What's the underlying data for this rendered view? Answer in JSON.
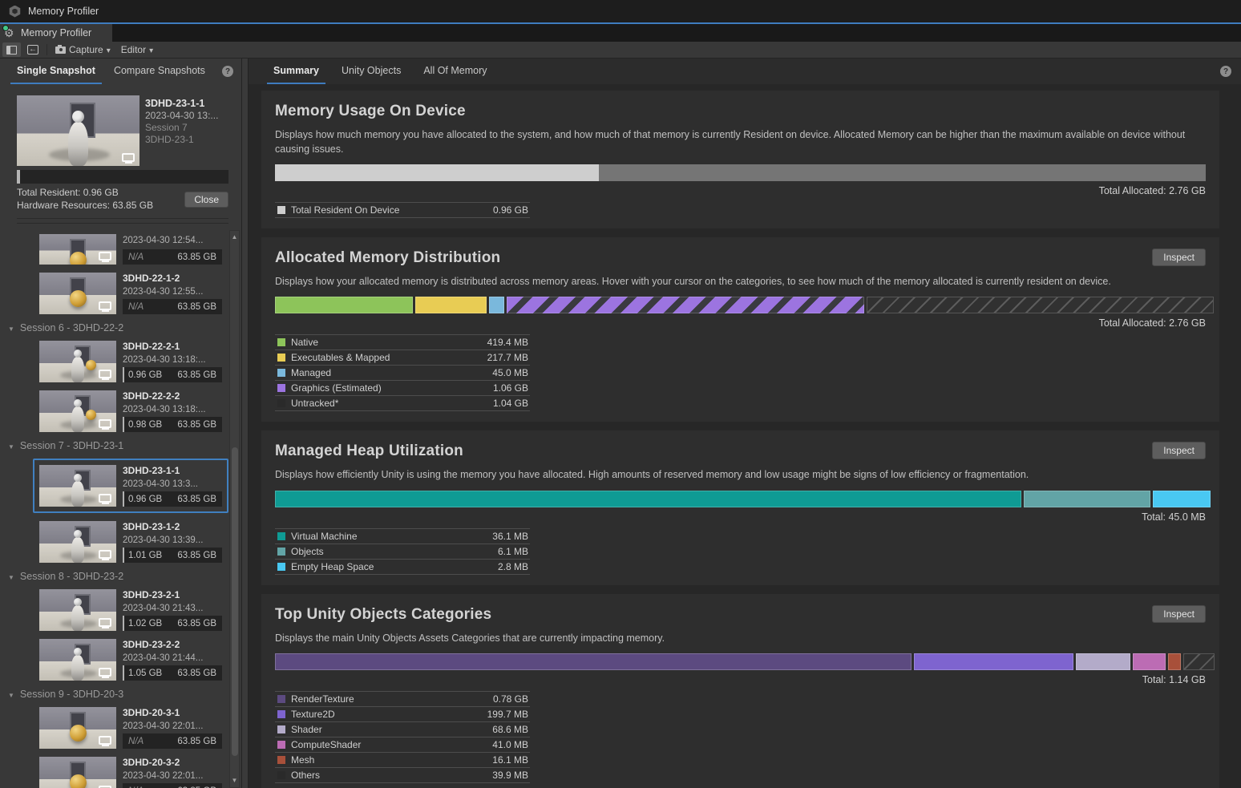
{
  "window": {
    "title": "Memory Profiler"
  },
  "dock_tab": {
    "label": "Memory Profiler"
  },
  "toolbar": {
    "capture_label": "Capture",
    "editor_label": "Editor"
  },
  "sidebar": {
    "tabs": [
      {
        "label": "Single Snapshot",
        "active": true
      },
      {
        "label": "Compare Snapshots",
        "active": false
      }
    ],
    "selected_card": {
      "name": "3DHD-23-1-1",
      "date": "2023-04-30 13:...",
      "session": "Session 7",
      "product": "3DHD-23-1",
      "bar_pct": 1.5,
      "total_resident": "Total Resident: 0.96 GB",
      "hardware_resources": "Hardware Resources: 63.85 GB",
      "close_label": "Close"
    },
    "list": [
      {
        "type": "item",
        "name": "",
        "date": "2023-04-30 12:54...",
        "resident": "N/A",
        "total": "63.85 GB",
        "thumb": "sphere",
        "clipped": true
      },
      {
        "type": "item",
        "name": "3DHD-22-1-2",
        "date": "2023-04-30 12:55...",
        "resident": "N/A",
        "total": "63.85 GB",
        "thumb": "sphere"
      },
      {
        "type": "session",
        "label": "Session 6 - 3DHD-22-2"
      },
      {
        "type": "item",
        "name": "3DHD-22-2-1",
        "date": "2023-04-30 13:18:...",
        "resident": "0.96 GB",
        "total": "63.85 GB",
        "thumb": "robot-sphere"
      },
      {
        "type": "item",
        "name": "3DHD-22-2-2",
        "date": "2023-04-30 13:18:...",
        "resident": "0.98 GB",
        "total": "63.85 GB",
        "thumb": "robot-sphere"
      },
      {
        "type": "session",
        "label": "Session 7 - 3DHD-23-1"
      },
      {
        "type": "item",
        "name": "3DHD-23-1-1",
        "date": "2023-04-30 13:3...",
        "resident": "0.96 GB",
        "total": "63.85 GB",
        "thumb": "robot",
        "selected": true
      },
      {
        "type": "item",
        "name": "3DHD-23-1-2",
        "date": "2023-04-30 13:39...",
        "resident": "1.01 GB",
        "total": "63.85 GB",
        "thumb": "robot"
      },
      {
        "type": "session",
        "label": "Session 8 - 3DHD-23-2"
      },
      {
        "type": "item",
        "name": "3DHD-23-2-1",
        "date": "2023-04-30 21:43...",
        "resident": "1.02 GB",
        "total": "63.85 GB",
        "thumb": "robot"
      },
      {
        "type": "item",
        "name": "3DHD-23-2-2",
        "date": "2023-04-30 21:44...",
        "resident": "1.05 GB",
        "total": "63.85 GB",
        "thumb": "robot"
      },
      {
        "type": "session",
        "label": "Session 9 - 3DHD-20-3"
      },
      {
        "type": "item",
        "name": "3DHD-20-3-1",
        "date": "2023-04-30 22:01...",
        "resident": "N/A",
        "total": "63.85 GB",
        "thumb": "sphere"
      },
      {
        "type": "item",
        "name": "3DHD-20-3-2",
        "date": "2023-04-30 22:01...",
        "resident": "N/A",
        "total": "63.85 GB",
        "thumb": "sphere"
      }
    ]
  },
  "main": {
    "tabs": [
      {
        "label": "Summary",
        "active": true
      },
      {
        "label": "Unity Objects",
        "active": false
      },
      {
        "label": "All Of Memory",
        "active": false
      }
    ],
    "inspect_label": "Inspect",
    "sections": [
      {
        "id": "memory-usage-on-device",
        "title": "Memory Usage On Device",
        "description": "Displays how much memory you have allocated to the system, and how much of that memory is currently Resident on device. Allocated Memory can be higher than the maximum available on device without causing issues.",
        "inspect": false,
        "bar_gap": 0,
        "bar": [
          {
            "name": "total-resident-on-device",
            "pct": 34.8,
            "color": "#cecece",
            "style": "plain"
          },
          {
            "name": "allocated-remainder",
            "pct": 65.2,
            "color": "#757575",
            "style": "plain"
          }
        ],
        "total_label": "Total Allocated: 2.76 GB",
        "legend": [
          {
            "name": "total-resident-on-device",
            "label": "Total Resident On Device",
            "value": "0.96 GB",
            "color": "#cecece"
          }
        ]
      },
      {
        "id": "allocated-memory-distribution",
        "title": "Allocated Memory Distribution",
        "description": "Displays how your allocated memory is distributed across memory areas. Hover with your cursor on the categories, to see how much of the memory allocated is currently resident on device.",
        "inspect": true,
        "bar_gap": 3,
        "bar": [
          {
            "name": "native",
            "pct": 14.8,
            "color": "#8dc45a",
            "style": "solid"
          },
          {
            "name": "executables-and-mapped",
            "pct": 7.7,
            "color": "#e8cc54",
            "style": "solid"
          },
          {
            "name": "managed",
            "pct": 1.6,
            "color": "#7ab8dc",
            "style": "solid"
          },
          {
            "name": "graphics-estimated",
            "pct": 38.4,
            "color": "#9c74e0",
            "style": "stripes"
          },
          {
            "name": "untracked",
            "pct": 37.3,
            "color": "#555555",
            "style": "hatch"
          }
        ],
        "total_label": "Total Allocated: 2.76 GB",
        "legend": [
          {
            "name": "native",
            "label": "Native",
            "value": "419.4 MB",
            "color": "#8dc45a"
          },
          {
            "name": "executables-and-mapped",
            "label": "Executables & Mapped",
            "value": "217.7 MB",
            "color": "#e8cc54"
          },
          {
            "name": "managed",
            "label": "Managed",
            "value": "45.0 MB",
            "color": "#7ab8dc"
          },
          {
            "name": "graphics-estimated",
            "label": "Graphics (Estimated)",
            "value": "1.06 GB",
            "color": "#9c74e0"
          },
          {
            "name": "untracked",
            "label": "Untracked*",
            "value": "1.04 GB",
            "color": "none"
          }
        ]
      },
      {
        "id": "managed-heap-utilization",
        "title": "Managed Heap Utilization",
        "description": "Displays how efficiently Unity is using the memory you have allocated. High amounts of reserved memory and low usage might be signs of low efficiency or fragmentation.",
        "inspect": true,
        "bar_gap": 3,
        "bar": [
          {
            "name": "virtual-machine",
            "pct": 80.2,
            "color": "#0f9b94",
            "style": "solid"
          },
          {
            "name": "objects",
            "pct": 13.6,
            "color": "#62a4a6",
            "style": "solid"
          },
          {
            "name": "empty-heap-space",
            "pct": 6.2,
            "color": "#49c8f2",
            "style": "solid"
          }
        ],
        "total_label": "Total: 45.0 MB",
        "legend": [
          {
            "name": "virtual-machine",
            "label": "Virtual Machine",
            "value": "36.1 MB",
            "color": "#0f9b94"
          },
          {
            "name": "objects",
            "label": "Objects",
            "value": "6.1 MB",
            "color": "#62a4a6"
          },
          {
            "name": "empty-heap-space",
            "label": "Empty Heap Space",
            "value": "2.8 MB",
            "color": "#49c8f2"
          }
        ]
      },
      {
        "id": "top-unity-objects-categories",
        "title": "Top Unity Objects Categories",
        "description": "Displays the main Unity Objects Assets Categories that are currently impacting memory.",
        "inspect": true,
        "bar_gap": 3,
        "bar": [
          {
            "name": "rendertexture",
            "pct": 68.4,
            "color": "#5c4a80",
            "style": "solid"
          },
          {
            "name": "texture2d",
            "pct": 17.1,
            "color": "#7e64cf",
            "style": "solid"
          },
          {
            "name": "shader",
            "pct": 5.9,
            "color": "#b3abc9",
            "style": "solid"
          },
          {
            "name": "computeshader",
            "pct": 3.5,
            "color": "#bc6cb4",
            "style": "solid"
          },
          {
            "name": "mesh",
            "pct": 1.4,
            "color": "#a8503a",
            "style": "solid"
          },
          {
            "name": "others",
            "pct": 3.4,
            "color": "#555555",
            "style": "hatch"
          }
        ],
        "total_label": "Total: 1.14 GB",
        "legend": [
          {
            "name": "rendertexture",
            "label": "RenderTexture",
            "value": "0.78 GB",
            "color": "#5c4a80"
          },
          {
            "name": "texture2d",
            "label": "Texture2D",
            "value": "199.7 MB",
            "color": "#7e64cf"
          },
          {
            "name": "shader",
            "label": "Shader",
            "value": "68.6 MB",
            "color": "#b3abc9"
          },
          {
            "name": "computeshader",
            "label": "ComputeShader",
            "value": "41.0 MB",
            "color": "#bc6cb4"
          },
          {
            "name": "mesh",
            "label": "Mesh",
            "value": "16.1 MB",
            "color": "#a8503a"
          },
          {
            "name": "others",
            "label": "Others",
            "value": "39.9 MB",
            "color": "none"
          }
        ]
      }
    ]
  }
}
